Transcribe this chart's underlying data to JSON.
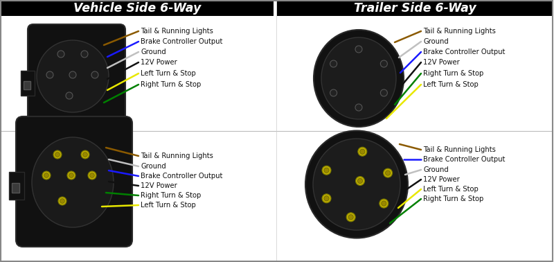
{
  "bg_color": "#ffffff",
  "header_bg": "#000000",
  "header_text_color": "#ffffff",
  "header_left": "Vehicle Side 6-Way",
  "header_right": "Trailer Side 6-Way",
  "wire_colors": {
    "tail": "#8B5A00",
    "ground": "#c0c0c0",
    "brake": "#1a1aff",
    "power": "#111111",
    "yellow": "#e8e800",
    "green": "#008000"
  },
  "label_color": "#111111",
  "label_fontsize": 7.2,
  "title_fontsize": 12.5,
  "top_left_wires": [
    {
      "color": "#8B5A00",
      "label": "Tail & Running Lights"
    },
    {
      "color": "#1a1aff",
      "label": "Brake Controller Output"
    },
    {
      "color": "#c0c0c0",
      "label": "Ground"
    },
    {
      "color": "#111111",
      "label": "12V Power"
    },
    {
      "color": "#e8e800",
      "label": "Left Turn & Stop"
    },
    {
      "color": "#008000",
      "label": "Right Turn & Stop"
    }
  ],
  "top_right_wires": [
    {
      "color": "#8B5A00",
      "label": "Tail & Running Lights"
    },
    {
      "color": "#c0c0c0",
      "label": "Ground"
    },
    {
      "color": "#1a1aff",
      "label": "Brake Controller Output"
    },
    {
      "color": "#111111",
      "label": "12V Power"
    },
    {
      "color": "#008000",
      "label": "Right Turn & Stop"
    },
    {
      "color": "#e8e800",
      "label": "Left Turn & Stop"
    }
  ],
  "bot_left_wires": [
    {
      "color": "#8B5A00",
      "label": "Tail & Running Lights"
    },
    {
      "color": "#c0c0c0",
      "label": "Ground"
    },
    {
      "color": "#1a1aff",
      "label": "Brake Controller Output"
    },
    {
      "color": "#111111",
      "label": "12V Power"
    },
    {
      "color": "#008000",
      "label": "Right Turn & Stop"
    },
    {
      "color": "#e8e800",
      "label": "Left Turn & Stop"
    }
  ],
  "bot_right_wires": [
    {
      "color": "#8B5A00",
      "label": "Tail & Running Lights"
    },
    {
      "color": "#1a1aff",
      "label": "Brake Controller Output"
    },
    {
      "color": "#c0c0c0",
      "label": "Ground"
    },
    {
      "color": "#111111",
      "label": "12V Power"
    },
    {
      "color": "#e8e800",
      "label": "Left Turn & Stop"
    },
    {
      "color": "#008000",
      "label": "Right Turn & Stop"
    }
  ]
}
